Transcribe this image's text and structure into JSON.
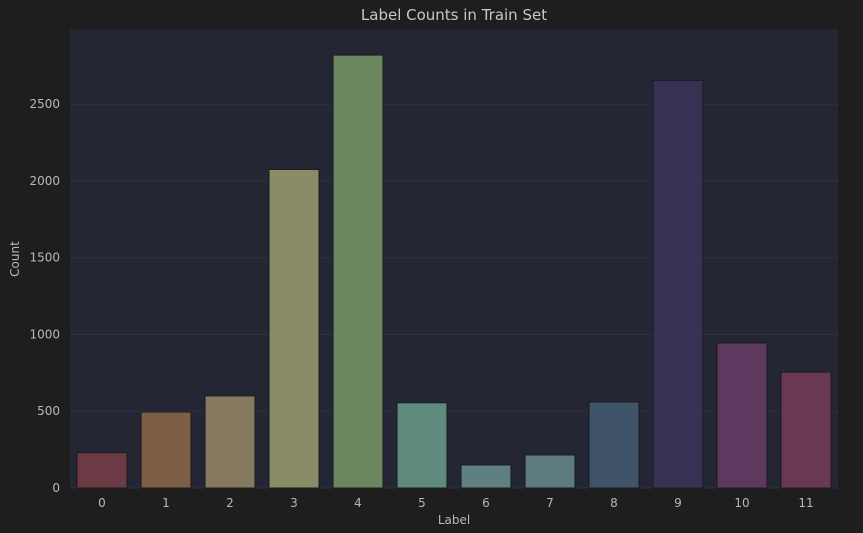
{
  "chart_data": {
    "type": "bar",
    "title": "Label Counts in Train Set",
    "xlabel": "Label",
    "ylabel": "Count",
    "categories": [
      "0",
      "1",
      "2",
      "3",
      "4",
      "5",
      "6",
      "7",
      "8",
      "9",
      "10",
      "11"
    ],
    "values": [
      230,
      495,
      600,
      2075,
      2820,
      555,
      150,
      215,
      560,
      2655,
      945,
      755
    ],
    "colors": [
      "#6b3a44",
      "#7e5d45",
      "#857a5f",
      "#8a8c65",
      "#6a8760",
      "#5f8a7e",
      "#5f7f80",
      "#5e7b80",
      "#3f5468",
      "#393153",
      "#5e385e",
      "#6a3850"
    ],
    "ylim": [
      0,
      2990
    ],
    "yticks": [
      0,
      500,
      1000,
      1500,
      2000,
      2500
    ],
    "grid": true,
    "plot_background": "#252634",
    "page_background": "#1e1e1e"
  }
}
